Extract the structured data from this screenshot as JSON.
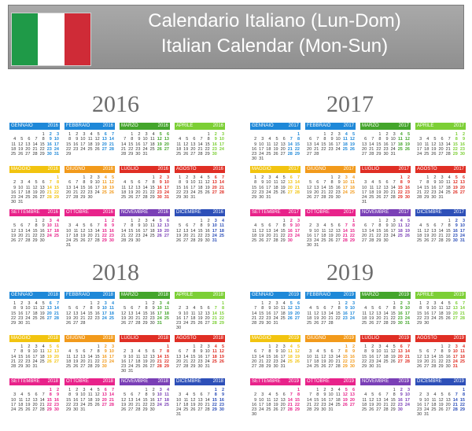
{
  "banner": {
    "title_line1": "Calendario Italiano (Lun-Dom)",
    "title_line2": "Italian Calendar (Mon-Sun)"
  },
  "month_names": [
    "GENNAIO",
    "FEBBRAIO",
    "MARZO",
    "APRILE",
    "MAGGIO",
    "GIUGNO",
    "LUGLIO",
    "AGOSTO",
    "SETTEMBRE",
    "OTTOBRE",
    "NOVEMBRE",
    "DICEMBRE"
  ],
  "month_colors": [
    "#1e88d8",
    "#1e88d8",
    "#43a52b",
    "#7ccf35",
    "#f2c40f",
    "#f29a1b",
    "#e02e24",
    "#e02e24",
    "#e8228a",
    "#e8228a",
    "#7a3fb6",
    "#2d4fb8"
  ],
  "years": [
    {
      "label": "2016",
      "year": 2016
    },
    {
      "label": "2017",
      "year": 2017
    },
    {
      "label": "2018",
      "year": 2018
    },
    {
      "label": "2019",
      "year": 2019
    }
  ]
}
